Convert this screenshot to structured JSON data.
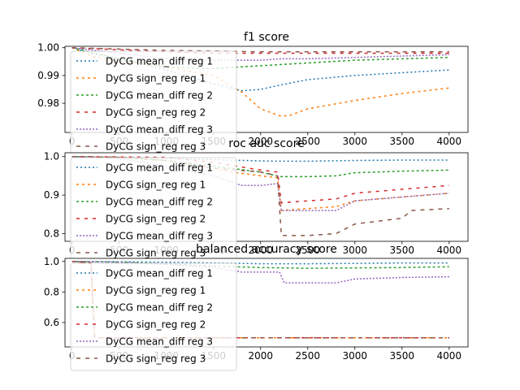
{
  "legend_labels": [
    "DyCG mean_diff reg 1",
    "DyCG sign_reg reg 1",
    "DyCG mean_diff reg 2",
    "DyCG sign_reg reg 2",
    "DyCG mean_diff reg 3",
    "DyCG sign_reg reg 3"
  ],
  "series_colors": [
    "#1f77b4",
    "#ff7f0e",
    "#2ca02c",
    "#d62728",
    "#9467bd",
    "#8c564b"
  ],
  "chart_data": [
    {
      "type": "line",
      "title": "f1 score",
      "xlabel": "",
      "ylabel": "",
      "xlim": [
        -75,
        4200
      ],
      "ylim": [
        0.9695,
        1.0005
      ],
      "xticks": [
        0,
        500,
        1000,
        1500,
        2000,
        2500,
        3000,
        3500,
        4000
      ],
      "yticks": [
        0.98,
        0.99,
        1.0
      ],
      "ytick_labels": [
        "0.98",
        "0.99",
        "1.00"
      ],
      "legend_position": "upper left",
      "series": [
        {
          "name": "DyCG mean_diff reg 1",
          "x": [
            0,
            200,
            500,
            1000,
            1500,
            1800,
            2000,
            2200,
            2500,
            3000,
            3500,
            4000
          ],
          "y": [
            1.0,
            0.998,
            0.996,
            0.992,
            0.987,
            0.9845,
            0.985,
            0.9865,
            0.9885,
            0.99,
            0.991,
            0.992
          ]
        },
        {
          "name": "DyCG sign_reg reg 1",
          "x": [
            0,
            200,
            500,
            1000,
            1500,
            1800,
            2000,
            2200,
            2300,
            2500,
            3000,
            3500,
            4000
          ],
          "y": [
            1.0,
            0.997,
            0.995,
            0.993,
            0.99,
            0.984,
            0.978,
            0.9755,
            0.9755,
            0.978,
            0.981,
            0.9835,
            0.9855
          ]
        },
        {
          "name": "DyCG mean_diff reg 2",
          "x": [
            0,
            500,
            1000,
            1500,
            2000,
            2500,
            3000,
            3500,
            4000
          ],
          "y": [
            1.0,
            0.996,
            0.993,
            0.9925,
            0.9935,
            0.9945,
            0.9955,
            0.996,
            0.9965
          ]
        },
        {
          "name": "DyCG sign_reg reg 2",
          "x": [
            0,
            1000,
            1500,
            2000,
            2500,
            3000,
            3500,
            4000
          ],
          "y": [
            1.0,
            0.9985,
            0.998,
            0.998,
            0.998,
            0.998,
            0.998,
            0.998
          ]
        },
        {
          "name": "DyCG mean_diff reg 3",
          "x": [
            0,
            500,
            1000,
            1500,
            2000,
            2200,
            2500,
            3000,
            3500,
            4000
          ],
          "y": [
            1.0,
            0.998,
            0.996,
            0.9955,
            0.9955,
            0.996,
            0.996,
            0.9965,
            0.997,
            0.9975
          ]
        },
        {
          "name": "DyCG sign_reg reg 3",
          "x": [
            0,
            500,
            1000,
            1500,
            2000,
            2500,
            3000,
            3500,
            4000
          ],
          "y": [
            1.0,
            0.9995,
            0.999,
            0.9988,
            0.9985,
            0.9985,
            0.9985,
            0.9985,
            0.9985
          ]
        }
      ]
    },
    {
      "type": "line",
      "title": "roc auc score",
      "xlabel": "",
      "ylabel": "",
      "xlim": [
        -75,
        4200
      ],
      "ylim": [
        0.78,
        1.01
      ],
      "xticks": [
        0,
        500,
        1000,
        1500,
        2000,
        2500,
        3000,
        3500,
        4000
      ],
      "yticks": [
        0.8,
        0.9,
        1.0
      ],
      "ytick_labels": [
        "0.8",
        "0.9",
        "1.0"
      ],
      "legend_position": "upper left",
      "series": [
        {
          "name": "DyCG mean_diff reg 1",
          "x": [
            0,
            500,
            1000,
            1500,
            2000,
            2200,
            2500,
            3000,
            3500,
            4000
          ],
          "y": [
            1.0,
            0.998,
            0.996,
            0.992,
            0.989,
            0.988,
            0.988,
            0.99,
            0.991,
            0.991
          ]
        },
        {
          "name": "DyCG sign_reg reg 1",
          "x": [
            0,
            500,
            1000,
            1500,
            1700,
            2000,
            2180,
            2220,
            2500,
            2800,
            3000,
            3500,
            4000
          ],
          "y": [
            1.0,
            0.998,
            0.99,
            0.97,
            0.96,
            0.95,
            0.945,
            0.86,
            0.865,
            0.87,
            0.885,
            0.895,
            0.905
          ]
        },
        {
          "name": "DyCG mean_diff reg 2",
          "x": [
            0,
            500,
            1000,
            1500,
            2000,
            2200,
            2500,
            2800,
            3000,
            3500,
            4000
          ],
          "y": [
            1.0,
            0.998,
            0.99,
            0.975,
            0.96,
            0.948,
            0.948,
            0.95,
            0.958,
            0.962,
            0.965
          ]
        },
        {
          "name": "DyCG sign_reg reg 2",
          "x": [
            0,
            1000,
            1500,
            2000,
            2180,
            2220,
            2500,
            2800,
            3000,
            3500,
            4000
          ],
          "y": [
            1.0,
            0.998,
            0.985,
            0.965,
            0.96,
            0.88,
            0.885,
            0.89,
            0.905,
            0.915,
            0.925
          ]
        },
        {
          "name": "DyCG mean_diff reg 3",
          "x": [
            0,
            500,
            1000,
            1500,
            1800,
            2000,
            2180,
            2220,
            2500,
            2800,
            3000,
            3500,
            4000
          ],
          "y": [
            1.0,
            0.995,
            0.975,
            0.95,
            0.925,
            0.925,
            0.93,
            0.86,
            0.86,
            0.86,
            0.885,
            0.895,
            0.905
          ]
        },
        {
          "name": "DyCG sign_reg reg 3",
          "x": [
            0,
            500,
            1000,
            1500,
            2000,
            2180,
            2220,
            2500,
            2800,
            3000,
            3500,
            3600,
            4000
          ],
          "y": [
            1.0,
            0.998,
            0.99,
            0.97,
            0.96,
            0.95,
            0.795,
            0.795,
            0.8,
            0.825,
            0.84,
            0.86,
            0.865
          ]
        }
      ]
    },
    {
      "type": "line",
      "title": "balanced accuracy score",
      "xlabel": "",
      "ylabel": "",
      "xlim": [
        -75,
        4200
      ],
      "ylim": [
        0.44,
        1.02
      ],
      "xticks": [
        0,
        500,
        1000,
        1500,
        2000,
        2500,
        3000,
        3500,
        4000
      ],
      "yticks": [
        0.6,
        0.8,
        1.0
      ],
      "ytick_labels": [
        "0.6",
        "0.8",
        "1.0"
      ],
      "legend_position": "upper left",
      "series": [
        {
          "name": "DyCG mean_diff reg 1",
          "x": [
            0,
            500,
            1000,
            1500,
            2000,
            2500,
            3000,
            3500,
            4000
          ],
          "y": [
            1.0,
            0.998,
            0.995,
            0.99,
            0.985,
            0.985,
            0.987,
            0.99,
            0.99
          ]
        },
        {
          "name": "DyCG sign_reg reg 1",
          "x": [
            0,
            200,
            240,
            1000,
            2000,
            3000,
            4000
          ],
          "y": [
            1.0,
            0.99,
            0.5,
            0.5,
            0.5,
            0.5,
            0.5
          ]
        },
        {
          "name": "DyCG mean_diff reg 2",
          "x": [
            0,
            500,
            1000,
            1500,
            2000,
            2500,
            3000,
            3500,
            4000
          ],
          "y": [
            1.0,
            0.995,
            0.985,
            0.97,
            0.96,
            0.955,
            0.958,
            0.96,
            0.965
          ]
        },
        {
          "name": "DyCG sign_reg reg 2",
          "x": [
            0,
            200,
            240,
            1000,
            2000,
            3000,
            4000
          ],
          "y": [
            1.0,
            0.99,
            0.5,
            0.5,
            0.5,
            0.5,
            0.5
          ]
        },
        {
          "name": "DyCG mean_diff reg 3",
          "x": [
            0,
            500,
            1000,
            1500,
            1800,
            2200,
            2250,
            2500,
            2800,
            3000,
            3500,
            4000
          ],
          "y": [
            1.0,
            0.995,
            0.98,
            0.96,
            0.93,
            0.93,
            0.86,
            0.86,
            0.86,
            0.885,
            0.895,
            0.9
          ]
        },
        {
          "name": "DyCG sign_reg reg 3",
          "x": [
            0,
            200,
            240,
            1000,
            2000,
            3000,
            4000
          ],
          "y": [
            1.0,
            0.99,
            0.5,
            0.5,
            0.5,
            0.5,
            0.5
          ]
        }
      ]
    }
  ]
}
